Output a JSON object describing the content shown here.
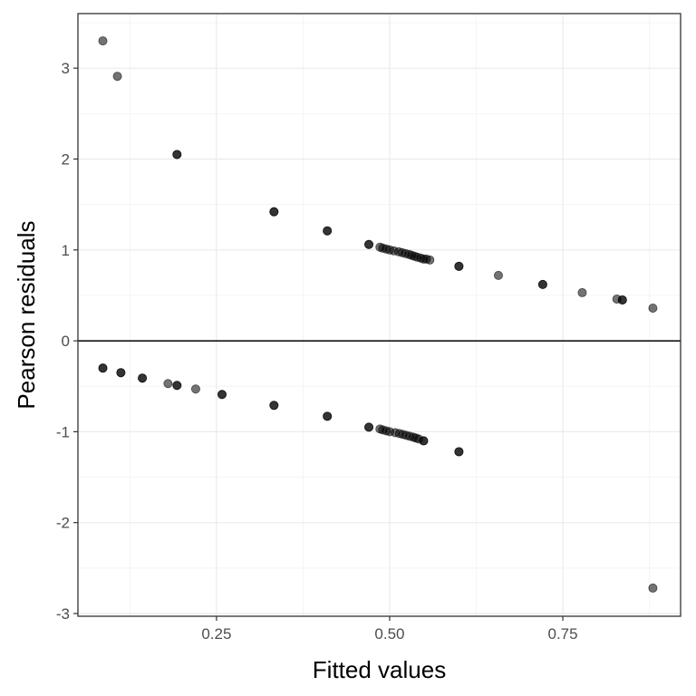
{
  "chart_data": {
    "type": "scatter",
    "title": "",
    "xlabel": "Fitted values",
    "ylabel": "Pearson residuals",
    "xlim": [
      0.05,
      0.92
    ],
    "ylim": [
      -3.03,
      3.6
    ],
    "x_ticks": [
      0.25,
      0.5,
      0.75
    ],
    "x_tick_labels": [
      "0.25",
      "0.50",
      "0.75"
    ],
    "y_ticks": [
      -3,
      -2,
      -1,
      0,
      1,
      2,
      3
    ],
    "y_tick_labels": [
      "-3",
      "-2",
      "-1",
      "0",
      "1",
      "2",
      "3"
    ],
    "grid": true,
    "reference_line_y": 0,
    "colors": {
      "point_fill": "#000000",
      "point_opacity": 0.55,
      "grid_major": "#ebebeb",
      "grid_minor": "#f4f4f4",
      "panel_border": "#333333",
      "reference_line": "#000000"
    },
    "points": [
      {
        "x": 0.086,
        "y": 3.3
      },
      {
        "x": 0.107,
        "y": 2.91
      },
      {
        "x": 0.193,
        "y": 2.05
      },
      {
        "x": 0.193,
        "y": 2.05
      },
      {
        "x": 0.333,
        "y": 1.42
      },
      {
        "x": 0.333,
        "y": 1.42
      },
      {
        "x": 0.41,
        "y": 1.21
      },
      {
        "x": 0.41,
        "y": 1.21
      },
      {
        "x": 0.47,
        "y": 1.06
      },
      {
        "x": 0.47,
        "y": 1.06
      },
      {
        "x": 0.486,
        "y": 1.03
      },
      {
        "x": 0.49,
        "y": 1.02
      },
      {
        "x": 0.495,
        "y": 1.01
      },
      {
        "x": 0.5,
        "y": 1.0
      },
      {
        "x": 0.506,
        "y": 0.99
      },
      {
        "x": 0.513,
        "y": 0.98
      },
      {
        "x": 0.518,
        "y": 0.97
      },
      {
        "x": 0.523,
        "y": 0.96
      },
      {
        "x": 0.528,
        "y": 0.95
      },
      {
        "x": 0.532,
        "y": 0.94
      },
      {
        "x": 0.536,
        "y": 0.93
      },
      {
        "x": 0.54,
        "y": 0.92
      },
      {
        "x": 0.545,
        "y": 0.91
      },
      {
        "x": 0.549,
        "y": 0.9
      },
      {
        "x": 0.553,
        "y": 0.9
      },
      {
        "x": 0.558,
        "y": 0.89
      },
      {
        "x": 0.6,
        "y": 0.82
      },
      {
        "x": 0.6,
        "y": 0.82
      },
      {
        "x": 0.657,
        "y": 0.72
      },
      {
        "x": 0.721,
        "y": 0.62
      },
      {
        "x": 0.721,
        "y": 0.62
      },
      {
        "x": 0.778,
        "y": 0.53
      },
      {
        "x": 0.828,
        "y": 0.46
      },
      {
        "x": 0.836,
        "y": 0.45
      },
      {
        "x": 0.836,
        "y": 0.45
      },
      {
        "x": 0.88,
        "y": 0.36
      },
      {
        "x": 0.086,
        "y": -0.3
      },
      {
        "x": 0.086,
        "y": -0.3
      },
      {
        "x": 0.112,
        "y": -0.35
      },
      {
        "x": 0.112,
        "y": -0.35
      },
      {
        "x": 0.143,
        "y": -0.41
      },
      {
        "x": 0.143,
        "y": -0.41
      },
      {
        "x": 0.18,
        "y": -0.47
      },
      {
        "x": 0.193,
        "y": -0.49
      },
      {
        "x": 0.193,
        "y": -0.49
      },
      {
        "x": 0.22,
        "y": -0.53
      },
      {
        "x": 0.258,
        "y": -0.59
      },
      {
        "x": 0.258,
        "y": -0.59
      },
      {
        "x": 0.333,
        "y": -0.71
      },
      {
        "x": 0.333,
        "y": -0.71
      },
      {
        "x": 0.41,
        "y": -0.83
      },
      {
        "x": 0.41,
        "y": -0.83
      },
      {
        "x": 0.47,
        "y": -0.95
      },
      {
        "x": 0.47,
        "y": -0.95
      },
      {
        "x": 0.486,
        "y": -0.97
      },
      {
        "x": 0.49,
        "y": -0.98
      },
      {
        "x": 0.495,
        "y": -0.99
      },
      {
        "x": 0.5,
        "y": -1.0
      },
      {
        "x": 0.508,
        "y": -1.01
      },
      {
        "x": 0.514,
        "y": -1.02
      },
      {
        "x": 0.519,
        "y": -1.03
      },
      {
        "x": 0.524,
        "y": -1.04
      },
      {
        "x": 0.529,
        "y": -1.05
      },
      {
        "x": 0.534,
        "y": -1.06
      },
      {
        "x": 0.538,
        "y": -1.07
      },
      {
        "x": 0.542,
        "y": -1.08
      },
      {
        "x": 0.549,
        "y": -1.1
      },
      {
        "x": 0.549,
        "y": -1.1
      },
      {
        "x": 0.6,
        "y": -1.22
      },
      {
        "x": 0.6,
        "y": -1.22
      },
      {
        "x": 0.88,
        "y": -2.72
      }
    ]
  }
}
